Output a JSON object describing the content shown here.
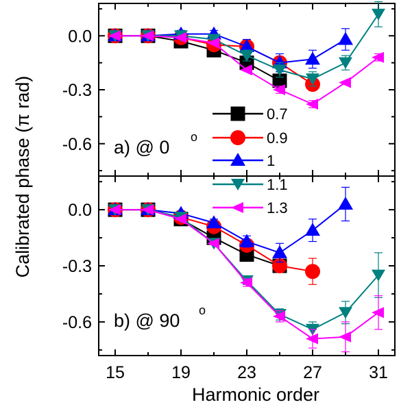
{
  "chart_data": [
    {
      "type": "line",
      "panel_label": "a) @ 0",
      "panel_label_superscript": "o",
      "xlabel": "Harmonic order",
      "ylabel": "Calibrated phase (π rad)",
      "xlim": [
        14,
        32
      ],
      "ylim": [
        -0.78,
        0.18
      ],
      "x_ticks": [
        15,
        19,
        23,
        27,
        31
      ],
      "y_ticks": [
        0.0,
        -0.3,
        -0.6
      ],
      "y_tick_labels": [
        "0.0",
        "-0.3",
        "-0.6"
      ],
      "legend_position": "center-right",
      "series": [
        {
          "name": "0.7",
          "color": "#000000",
          "marker": "square",
          "x": [
            15,
            17,
            19,
            21,
            23,
            25
          ],
          "y": [
            0.0,
            0.0,
            -0.03,
            -0.08,
            -0.15,
            -0.25
          ],
          "err": [
            0.01,
            0.01,
            0.01,
            0.01,
            0.01,
            0.01
          ]
        },
        {
          "name": "0.9",
          "color": "#ff0000",
          "marker": "circle",
          "x": [
            15,
            17,
            19,
            21,
            23,
            25,
            27
          ],
          "y": [
            0.0,
            0.0,
            -0.01,
            -0.05,
            -0.06,
            -0.15,
            -0.27
          ],
          "err": [
            0.01,
            0.01,
            0.01,
            0.01,
            0.01,
            0.01,
            0.01
          ]
        },
        {
          "name": "1",
          "color": "#0000ff",
          "marker": "triangle-up",
          "x": [
            15,
            17,
            19,
            21,
            23,
            25,
            27,
            29
          ],
          "y": [
            0.0,
            0.0,
            0.01,
            0.01,
            -0.06,
            -0.15,
            -0.13,
            -0.02
          ],
          "err": [
            0.01,
            0.01,
            0.02,
            0.02,
            0.04,
            0.05,
            0.05,
            0.06
          ]
        },
        {
          "name": "1.1",
          "color": "#008080",
          "marker": "triangle-down",
          "x": [
            15,
            17,
            19,
            21,
            23,
            25,
            27,
            29,
            31
          ],
          "y": [
            0.0,
            0.0,
            0.0,
            -0.02,
            -0.11,
            -0.19,
            -0.24,
            -0.15,
            0.12
          ],
          "err": [
            0.01,
            0.01,
            0.01,
            0.02,
            0.03,
            0.04,
            0.04,
            0.04,
            0.07
          ]
        },
        {
          "name": "1.3",
          "color": "#ff00ff",
          "marker": "triangle-left",
          "x": [
            15,
            17,
            19,
            21,
            23,
            25,
            27,
            29,
            31
          ],
          "y": [
            0.0,
            0.0,
            -0.01,
            -0.04,
            -0.19,
            -0.3,
            -0.38,
            -0.26,
            -0.12
          ],
          "err": [
            0.01,
            0.01,
            0.01,
            0.01,
            0.01,
            0.02,
            0.02,
            0.01,
            0.02
          ]
        }
      ]
    },
    {
      "type": "line",
      "panel_label": "b) @ 90",
      "panel_label_superscript": "o",
      "xlabel": "Harmonic order",
      "ylabel": "Calibrated phase (π rad)",
      "xlim": [
        14,
        32
      ],
      "ylim": [
        -0.78,
        0.18
      ],
      "x_ticks": [
        15,
        19,
        23,
        27,
        31
      ],
      "y_ticks": [
        0.0,
        -0.3,
        -0.6
      ],
      "y_tick_labels": [
        "0.0",
        "-0.3",
        "-0.6"
      ],
      "series": [
        {
          "name": "0.7",
          "color": "#000000",
          "marker": "square",
          "x": [
            15,
            17,
            19,
            21,
            23,
            25
          ],
          "y": [
            0.0,
            0.0,
            -0.05,
            -0.15,
            -0.24,
            -0.3
          ],
          "err": [
            0.01,
            0.01,
            0.01,
            0.01,
            0.01,
            0.01
          ]
        },
        {
          "name": "0.9",
          "color": "#ff0000",
          "marker": "circle",
          "x": [
            15,
            17,
            19,
            21,
            23,
            25,
            27
          ],
          "y": [
            0.0,
            0.0,
            -0.04,
            -0.09,
            -0.19,
            -0.3,
            -0.33
          ],
          "err": [
            0.01,
            0.01,
            0.01,
            0.01,
            0.02,
            0.03,
            0.07
          ]
        },
        {
          "name": "1",
          "color": "#0000ff",
          "marker": "triangle-up",
          "x": [
            15,
            17,
            19,
            21,
            23,
            25,
            27,
            29
          ],
          "y": [
            0.0,
            0.0,
            -0.02,
            -0.07,
            -0.17,
            -0.23,
            -0.11,
            0.03
          ],
          "err": [
            0.01,
            0.01,
            0.01,
            0.02,
            0.03,
            0.05,
            0.06,
            0.09
          ]
        },
        {
          "name": "1.1",
          "color": "#008080",
          "marker": "triangle-down",
          "x": [
            15,
            17,
            19,
            21,
            23,
            25,
            27,
            29,
            31
          ],
          "y": [
            0.0,
            0.0,
            -0.04,
            -0.18,
            -0.38,
            -0.56,
            -0.64,
            -0.55,
            -0.35
          ],
          "err": [
            0.01,
            0.01,
            0.01,
            0.01,
            0.02,
            0.03,
            0.04,
            0.06,
            0.12
          ]
        },
        {
          "name": "1.3",
          "color": "#ff00ff",
          "marker": "triangle-left",
          "x": [
            15,
            17,
            19,
            21,
            23,
            25,
            27,
            29,
            31
          ],
          "y": [
            0.0,
            0.0,
            -0.05,
            -0.18,
            -0.39,
            -0.57,
            -0.69,
            -0.68,
            -0.55
          ],
          "err": [
            0.01,
            0.01,
            0.01,
            0.01,
            0.02,
            0.03,
            0.05,
            0.08,
            0.09
          ]
        }
      ]
    }
  ]
}
